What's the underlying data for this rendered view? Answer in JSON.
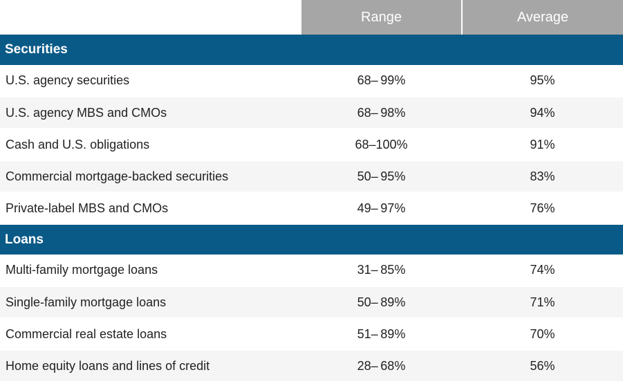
{
  "table": {
    "columns": {
      "range": "Range",
      "average": "Average"
    },
    "header_bg": "#a6a6a6",
    "section_bg": "#0a5a87",
    "row_alt_bg": "#f5f5f5",
    "sections": [
      {
        "title": "Securities",
        "rows": [
          {
            "label": "U.S. agency securities",
            "range": "68– 99%",
            "avg": "95%"
          },
          {
            "label": "U.S. agency MBS and CMOs",
            "range": "68– 98%",
            "avg": "94%"
          },
          {
            "label": "Cash and U.S. obligations",
            "range": "68–100%",
            "avg": "91%"
          },
          {
            "label": "Commercial mortgage-backed securities",
            "range": "50– 95%",
            "avg": "83%"
          },
          {
            "label": "Private-label MBS and CMOs",
            "range": "49– 97%",
            "avg": "76%"
          }
        ]
      },
      {
        "title": "Loans",
        "rows": [
          {
            "label": "Multi-family mortgage loans",
            "range": "31– 85%",
            "avg": "74%"
          },
          {
            "label": "Single-family mortgage loans",
            "range": "50– 89%",
            "avg": "71%"
          },
          {
            "label": "Commercial real estate loans",
            "range": "51– 89%",
            "avg": "70%"
          },
          {
            "label": "Home equity loans and lines of credit",
            "range": "28– 68%",
            "avg": "56%"
          }
        ]
      }
    ]
  }
}
